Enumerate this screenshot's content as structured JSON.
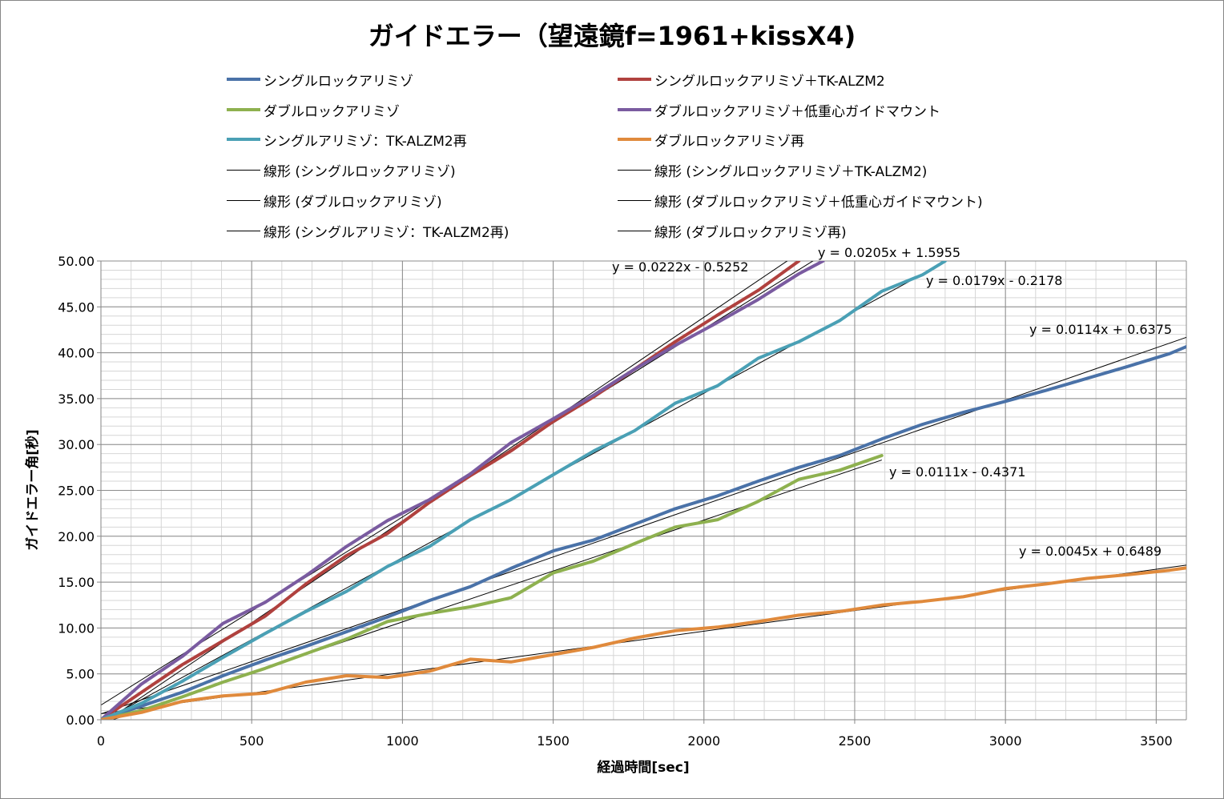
{
  "chart_data": {
    "type": "line",
    "title": "ガイドエラー（望遠鏡f=1961+kissX4)",
    "xlabel": "経過時間[sec]",
    "ylabel": "ガイドエラー角[秒]",
    "xlim": [
      0,
      3600
    ],
    "ylim": [
      0,
      50
    ],
    "x_major_ticks": [
      0,
      500,
      1000,
      1500,
      2000,
      2500,
      3000,
      3500
    ],
    "x_tick_labels": [
      "0",
      "500",
      "1000",
      "1500",
      "2000",
      "2500",
      "3000",
      "3500"
    ],
    "x_minor_step": 100,
    "y_major_ticks": [
      0,
      5,
      10,
      15,
      20,
      25,
      30,
      35,
      40,
      45,
      50
    ],
    "y_tick_labels": [
      "0.00",
      "5.00",
      "10.00",
      "15.00",
      "20.00",
      "25.00",
      "30.00",
      "35.00",
      "40.00",
      "45.00",
      "50.00"
    ],
    "y_minor_step": 1,
    "grid": true,
    "legend_position": "top",
    "series": [
      {
        "name": "シングルロックアリミゾ",
        "color": "#4a72a8",
        "x": [
          0,
          135,
          270,
          405,
          545,
          680,
          815,
          950,
          1090,
          1225,
          1360,
          1500,
          1635,
          1770,
          1905,
          2045,
          2180,
          2315,
          2450,
          2590,
          2725,
          2860,
          3000,
          3135,
          3270,
          3405,
          3545,
          3610
        ],
        "y": [
          0,
          1.5,
          3.0,
          4.8,
          6.5,
          8.0,
          9.6,
          11.2,
          13.0,
          14.5,
          16.5,
          18.4,
          19.6,
          21.3,
          23.0,
          24.4,
          26.0,
          27.5,
          28.8,
          30.6,
          32.2,
          33.5,
          34.7,
          35.9,
          37.2,
          38.5,
          39.9,
          40.8
        ]
      },
      {
        "name": "シングルロックアリミゾ＋TK-ALZM2",
        "color": "#b0413e",
        "x": [
          0,
          135,
          270,
          405,
          545,
          680,
          815,
          950,
          1090,
          1225,
          1360,
          1500,
          1635,
          1770,
          1905,
          2045,
          2180,
          2315
        ],
        "y": [
          0,
          3.0,
          6.0,
          8.6,
          11.3,
          14.8,
          17.9,
          20.3,
          23.7,
          26.6,
          29.3,
          32.5,
          35.2,
          38.2,
          41.2,
          44.1,
          46.8,
          50.0
        ]
      },
      {
        "name": "ダブルロックアリミゾ",
        "color": "#8eb14f",
        "x": [
          0,
          135,
          270,
          405,
          545,
          680,
          815,
          950,
          1090,
          1225,
          1360,
          1500,
          1635,
          1770,
          1905,
          2045,
          2180,
          2315,
          2450,
          2590
        ],
        "y": [
          0,
          1.0,
          2.5,
          4.1,
          5.6,
          7.2,
          8.8,
          10.7,
          11.6,
          12.3,
          13.3,
          16.0,
          17.3,
          19.2,
          21.0,
          21.8,
          23.8,
          26.2,
          27.2,
          28.8
        ]
      },
      {
        "name": "ダブルロックアリミゾ＋低重心ガイドマウント",
        "color": "#7a5ba0",
        "x": [
          0,
          135,
          270,
          405,
          545,
          680,
          815,
          950,
          1090,
          1225,
          1360,
          1500,
          1635,
          1770,
          1905,
          2045,
          2180,
          2315,
          2395
        ],
        "y": [
          0,
          3.9,
          6.9,
          10.5,
          12.8,
          15.7,
          18.9,
          21.7,
          24.0,
          26.8,
          30.2,
          32.8,
          35.4,
          38.2,
          40.8,
          43.3,
          45.8,
          48.6,
          50.0
        ]
      },
      {
        "name": "シングルアリミゾ：TK-ALZM2再",
        "color": "#4aa0b5",
        "x": [
          0,
          135,
          270,
          405,
          545,
          680,
          815,
          950,
          1090,
          1225,
          1360,
          1500,
          1635,
          1770,
          1905,
          2045,
          2180,
          2315,
          2450,
          2590,
          2725,
          2800
        ],
        "y": [
          0,
          1.8,
          4.2,
          6.8,
          9.4,
          11.8,
          14.0,
          16.7,
          18.9,
          21.8,
          24.0,
          26.7,
          29.3,
          31.5,
          34.5,
          36.4,
          39.4,
          41.2,
          43.5,
          46.7,
          48.5,
          50.0
        ]
      },
      {
        "name": "ダブルロックアリミゾ再",
        "color": "#e08a3c",
        "x": [
          0,
          135,
          270,
          405,
          545,
          680,
          815,
          950,
          1090,
          1225,
          1360,
          1500,
          1635,
          1770,
          1905,
          2045,
          2180,
          2315,
          2450,
          2590,
          2725,
          2860,
          3000,
          3135,
          3270,
          3405,
          3545,
          3610
        ],
        "y": [
          0,
          0.8,
          2.0,
          2.6,
          2.9,
          4.1,
          4.8,
          4.6,
          5.3,
          6.6,
          6.3,
          7.1,
          7.9,
          8.9,
          9.7,
          10.1,
          10.7,
          11.4,
          11.8,
          12.5,
          12.9,
          13.4,
          14.3,
          14.8,
          15.4,
          15.8,
          16.3,
          16.6
        ]
      }
    ],
    "trendlines": [
      {
        "name": "線形 (シングルロックアリミゾ)",
        "slope": 0.0114,
        "intercept": 0.6375,
        "equation": "y = 0.0114x + 0.6375",
        "x_range": [
          0,
          3610
        ]
      },
      {
        "name": "線形 (シングルロックアリミゾ＋TK-ALZM2)",
        "slope": 0.0222,
        "intercept": -0.5252,
        "equation": "y = 0.0222x - 0.5252",
        "x_range": [
          0,
          2400
        ]
      },
      {
        "name": "線形 (ダブルロックアリミゾ)",
        "slope": 0.0111,
        "intercept": -0.4371,
        "equation": "y = 0.0111x - 0.4371",
        "x_range": [
          0,
          2590
        ]
      },
      {
        "name": "線形 (ダブルロックアリミゾ＋低重心ガイドマウント)",
        "slope": 0.0205,
        "intercept": 1.5955,
        "equation": "y = 0.0205x + 1.5955",
        "x_range": [
          0,
          2400
        ]
      },
      {
        "name": "線形 (シングルアリミゾ：TK-ALZM2再)",
        "slope": 0.0179,
        "intercept": -0.2178,
        "equation": "y = 0.0179x - 0.2178",
        "x_range": [
          0,
          2800
        ]
      },
      {
        "name": "線形 (ダブルロックアリミゾ再)",
        "slope": 0.0045,
        "intercept": 0.6489,
        "equation": "y = 0.0045x + 0.6489",
        "x_range": [
          0,
          3610
        ]
      }
    ]
  }
}
